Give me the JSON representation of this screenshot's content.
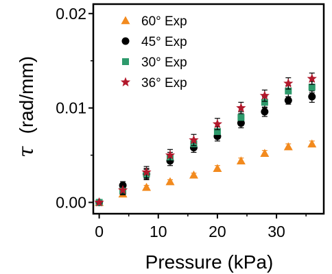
{
  "chart_data": {
    "type": "scatter",
    "title": "",
    "xlabel": "Pressure  (kPa)",
    "ylabel_symbol": "τ",
    "ylabel_units": "(rad/mm)",
    "xlim": [
      -1,
      38
    ],
    "ylim": [
      -0.0012,
      0.021
    ],
    "xticks": [
      0,
      10,
      20,
      30
    ],
    "xtick_labels": [
      "0",
      "10",
      "20",
      "30"
    ],
    "yticks": [
      0.0,
      0.01,
      0.02
    ],
    "ytick_labels": [
      "0.00",
      "0.01",
      "0.02"
    ],
    "grid": false,
    "legend_position": "top-left",
    "x": [
      0,
      4,
      8,
      12,
      16,
      20,
      24,
      28,
      32,
      36
    ],
    "series": [
      {
        "name": "60° Exp",
        "marker": "triangle",
        "color": "#f28a1e",
        "values": [
          0.0,
          0.0009,
          0.0016,
          0.0022,
          0.0029,
          0.0036,
          0.0044,
          0.0052,
          0.0059,
          0.0062
        ],
        "errors": [
          0.0001,
          0.0002,
          0.0002,
          0.0002,
          0.0002,
          0.0003,
          0.0003,
          0.0003,
          0.0003,
          0.0003
        ]
      },
      {
        "name": "45° Exp",
        "marker": "circle",
        "color": "#000000",
        "values": [
          0.0,
          0.0018,
          0.003,
          0.0044,
          0.0058,
          0.007,
          0.0084,
          0.0096,
          0.0108,
          0.0112
        ],
        "errors": [
          0.0001,
          0.0004,
          0.0006,
          0.0005,
          0.0005,
          0.0005,
          0.0005,
          0.0005,
          0.0004,
          0.0006
        ]
      },
      {
        "name": "30° Exp",
        "marker": "square",
        "color": "#2e9a6c",
        "values": [
          0.0,
          0.0012,
          0.003,
          0.0048,
          0.0062,
          0.0075,
          0.009,
          0.0106,
          0.0118,
          0.0122
        ],
        "errors": [
          0.0001,
          0.0004,
          0.0005,
          0.0005,
          0.0005,
          0.0005,
          0.0006,
          0.0006,
          0.0006,
          0.0006
        ]
      },
      {
        "name": "36° Exp",
        "marker": "star",
        "color": "#b2182b",
        "values": [
          0.0,
          0.0013,
          0.0032,
          0.005,
          0.0066,
          0.0083,
          0.01,
          0.0113,
          0.0126,
          0.0131
        ],
        "errors": [
          0.0001,
          0.0004,
          0.0006,
          0.0006,
          0.0006,
          0.0006,
          0.0006,
          0.0006,
          0.0006,
          0.0006
        ]
      }
    ]
  }
}
